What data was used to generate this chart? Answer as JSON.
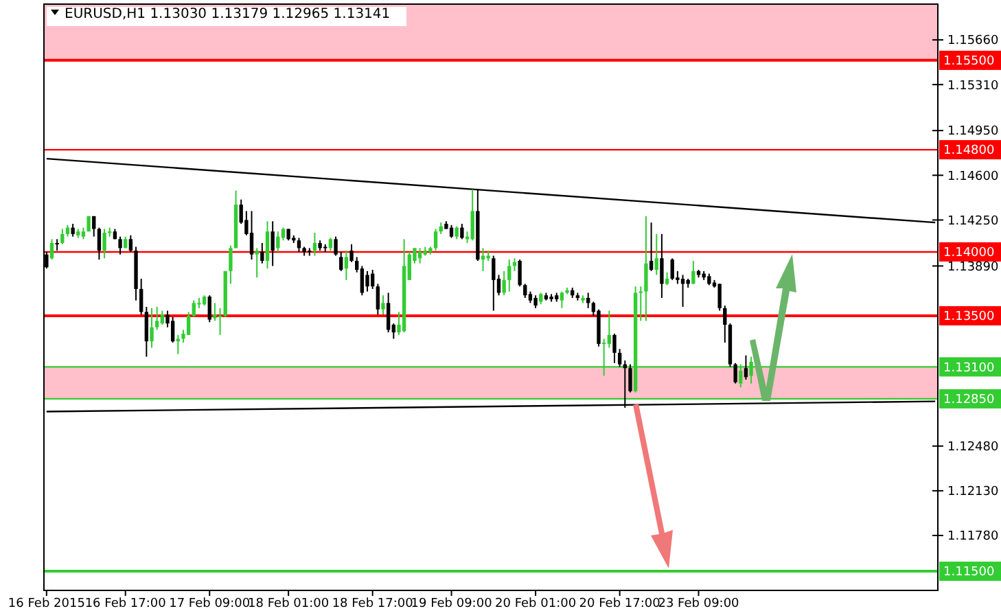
{
  "chart_data": {
    "type": "candlestick",
    "title": "EURUSD,H1  1.13030 1.13179 1.12965 1.13141",
    "categories": [
      "16 Feb 2015",
      null,
      null,
      null,
      null,
      null,
      null,
      null,
      null,
      null,
      null,
      null,
      null,
      null,
      null,
      "16 Feb 17:00",
      null,
      null,
      null,
      null,
      null,
      null,
      null,
      null,
      null,
      null,
      null,
      null,
      null,
      null,
      null,
      "17 Feb 09:00",
      null,
      null,
      null,
      null,
      null,
      null,
      null,
      null,
      null,
      null,
      null,
      null,
      null,
      null,
      "18 Feb 01:00",
      null,
      null,
      null,
      null,
      null,
      null,
      null,
      null,
      null,
      null,
      null,
      null,
      null,
      null,
      null,
      "18 Feb 17:00",
      null,
      null,
      null,
      null,
      null,
      null,
      null,
      null,
      null,
      null,
      null,
      null,
      null,
      null,
      "19 Feb 09:00",
      null,
      null,
      null,
      null,
      null,
      null,
      null,
      null,
      null,
      null,
      null,
      null,
      null,
      null,
      null,
      "20 Feb 01:00",
      null,
      null,
      null,
      null,
      null,
      null,
      null,
      null,
      null,
      null,
      null,
      null,
      null,
      null,
      null,
      "20 Feb 17:00",
      null,
      null,
      null,
      null,
      null,
      null,
      null,
      null,
      null,
      null,
      null,
      null,
      null,
      null,
      "23 Feb 09:00",
      null,
      null,
      null,
      null,
      null,
      null,
      null,
      null,
      null,
      null,
      null,
      null,
      null,
      null,
      null,
      null,
      null,
      null,
      null,
      null,
      null,
      null,
      null,
      null,
      null,
      null,
      null,
      null,
      null,
      null,
      null,
      null,
      null,
      null,
      null,
      null,
      null,
      null,
      null,
      null,
      null,
      null,
      null,
      null,
      null
    ],
    "ohlc": [
      [
        1.1398,
        1.14,
        1.1387,
        1.1388
      ],
      [
        1.1395,
        1.141,
        1.1394,
        1.1407
      ],
      [
        1.1407,
        1.141,
        1.1401,
        1.1406
      ],
      [
        1.1407,
        1.1418,
        1.1406,
        1.1414
      ],
      [
        1.1414,
        1.1421,
        1.1412,
        1.1419
      ],
      [
        1.1419,
        1.1422,
        1.1412,
        1.1414
      ],
      [
        1.1413,
        1.1418,
        1.1411,
        1.1416
      ],
      [
        1.1412,
        1.1419,
        1.141,
        1.1416
      ],
      [
        1.1416,
        1.1428,
        1.1416,
        1.1428
      ],
      [
        1.1428,
        1.1428,
        1.1412,
        1.1418
      ],
      [
        1.1418,
        1.1419,
        1.1394,
        1.1401
      ],
      [
        1.1401,
        1.1418,
        1.1395,
        1.1415
      ],
      [
        1.1415,
        1.1419,
        1.1412,
        1.1416
      ],
      [
        1.1416,
        1.1418,
        1.141,
        1.141
      ],
      [
        1.141,
        1.1412,
        1.1398,
        1.1403
      ],
      [
        1.1403,
        1.1412,
        1.1403,
        1.141
      ],
      [
        1.141,
        1.1413,
        1.14,
        1.1401
      ],
      [
        1.1401,
        1.1404,
        1.1362,
        1.1371
      ],
      [
        1.1371,
        1.1379,
        1.1351,
        1.1353
      ],
      [
        1.1353,
        1.1357,
        1.1318,
        1.133
      ],
      [
        1.133,
        1.1356,
        1.1325,
        1.1341
      ],
      [
        1.1341,
        1.1357,
        1.1339,
        1.1346
      ],
      [
        1.1344,
        1.1354,
        1.1343,
        1.1351
      ],
      [
        1.1351,
        1.1354,
        1.1341,
        1.1344
      ],
      [
        1.1346,
        1.1349,
        1.1329,
        1.133
      ],
      [
        1.133,
        1.1335,
        1.132,
        1.1332
      ],
      [
        1.1332,
        1.1339,
        1.1329,
        1.1336
      ],
      [
        1.1335,
        1.1353,
        1.1335,
        1.135
      ],
      [
        1.135,
        1.1362,
        1.1349,
        1.136
      ],
      [
        1.1359,
        1.1364,
        1.1356,
        1.136
      ],
      [
        1.1359,
        1.1366,
        1.1358,
        1.1365
      ],
      [
        1.1365,
        1.1366,
        1.1345,
        1.1347
      ],
      [
        1.1348,
        1.136,
        1.1346,
        1.1351
      ],
      [
        1.135,
        1.1356,
        1.1335,
        1.135
      ],
      [
        1.135,
        1.1385,
        1.1349,
        1.1385
      ],
      [
        1.1385,
        1.1405,
        1.1375,
        1.1403
      ],
      [
        1.1403,
        1.1448,
        1.1403,
        1.1437
      ],
      [
        1.1437,
        1.1441,
        1.1422,
        1.1423
      ],
      [
        1.1425,
        1.1432,
        1.1413,
        1.1414
      ],
      [
        1.1415,
        1.1432,
        1.1394,
        1.1398
      ],
      [
        1.1398,
        1.1403,
        1.138,
        1.1401
      ],
      [
        1.14,
        1.1407,
        1.1391,
        1.1393
      ],
      [
        1.1393,
        1.1424,
        1.1387,
        1.1416
      ],
      [
        1.1416,
        1.1424,
        1.1389,
        1.1401
      ],
      [
        1.1403,
        1.1416,
        1.14,
        1.1412
      ],
      [
        1.1411,
        1.1419,
        1.1409,
        1.1418
      ],
      [
        1.1418,
        1.1418,
        1.1409,
        1.141
      ],
      [
        1.1411,
        1.1413,
        1.1407,
        1.1409
      ],
      [
        1.1409,
        1.1411,
        1.14,
        1.1403
      ],
      [
        1.1403,
        1.1404,
        1.1397,
        1.14
      ],
      [
        1.1401,
        1.1403,
        1.1397,
        1.14
      ],
      [
        1.1401,
        1.1415,
        1.1397,
        1.1407
      ],
      [
        1.1407,
        1.1409,
        1.1401,
        1.1403
      ],
      [
        1.1404,
        1.1406,
        1.14,
        1.1403
      ],
      [
        1.1403,
        1.1411,
        1.1401,
        1.141
      ],
      [
        1.141,
        1.1412,
        1.1397,
        1.1398
      ],
      [
        1.1396,
        1.14,
        1.1385,
        1.1386
      ],
      [
        1.1387,
        1.1401,
        1.1378,
        1.1396
      ],
      [
        1.1401,
        1.1406,
        1.1392,
        1.1393
      ],
      [
        1.1393,
        1.1396,
        1.1384,
        1.1386
      ],
      [
        1.1387,
        1.1389,
        1.1366,
        1.1368
      ],
      [
        1.1382,
        1.1385,
        1.1369,
        1.1373
      ],
      [
        1.1383,
        1.1386,
        1.1371,
        1.1373
      ],
      [
        1.1373,
        1.1375,
        1.1351,
        1.1355
      ],
      [
        1.1355,
        1.1366,
        1.1351,
        1.136
      ],
      [
        1.136,
        1.1368,
        1.1337,
        1.1339
      ],
      [
        1.1343,
        1.1344,
        1.1332,
        1.1337
      ],
      [
        1.1337,
        1.1353,
        1.1335,
        1.1343
      ],
      [
        1.1338,
        1.141,
        1.1337,
        1.1389
      ],
      [
        1.1378,
        1.14,
        1.1378,
        1.1398
      ],
      [
        1.1393,
        1.1403,
        1.1391,
        1.1403
      ],
      [
        1.1395,
        1.1403,
        1.1391,
        1.14
      ],
      [
        1.1398,
        1.1404,
        1.1397,
        1.1401
      ],
      [
        1.14,
        1.1404,
        1.1398,
        1.1403
      ],
      [
        1.1403,
        1.1418,
        1.1401,
        1.1416
      ],
      [
        1.1416,
        1.1423,
        1.1414,
        1.142
      ],
      [
        1.1422,
        1.1424,
        1.1418,
        1.1418
      ],
      [
        1.1419,
        1.1421,
        1.1411,
        1.1412
      ],
      [
        1.1412,
        1.142,
        1.141,
        1.1419
      ],
      [
        1.1419,
        1.1422,
        1.141,
        1.1411
      ],
      [
        1.141,
        1.1416,
        1.1407,
        1.1412
      ],
      [
        1.141,
        1.1449,
        1.1409,
        1.1432
      ],
      [
        1.1432,
        1.1449,
        1.1393,
        1.1394
      ],
      [
        1.1394,
        1.1403,
        1.1385,
        1.1397
      ],
      [
        1.1395,
        1.1401,
        1.1393,
        1.1397
      ],
      [
        1.1395,
        1.1397,
        1.1354,
        1.1378
      ],
      [
        1.1379,
        1.1382,
        1.1366,
        1.1368
      ],
      [
        1.1368,
        1.1385,
        1.1366,
        1.1378
      ],
      [
        1.1378,
        1.1394,
        1.1369,
        1.1389
      ],
      [
        1.1389,
        1.1395,
        1.1385,
        1.1392
      ],
      [
        1.1393,
        1.1394,
        1.1373,
        1.1374
      ],
      [
        1.1374,
        1.1375,
        1.1364,
        1.1366
      ],
      [
        1.1367,
        1.1369,
        1.136,
        1.1362
      ],
      [
        1.1364,
        1.1366,
        1.1356,
        1.1358
      ],
      [
        1.1361,
        1.1368,
        1.1359,
        1.1367
      ],
      [
        1.1366,
        1.1368,
        1.1362,
        1.1363
      ],
      [
        1.1365,
        1.1367,
        1.1361,
        1.1363
      ],
      [
        1.1366,
        1.1368,
        1.1361,
        1.1363
      ],
      [
        1.1362,
        1.1369,
        1.1356,
        1.1368
      ],
      [
        1.1368,
        1.1372,
        1.1367,
        1.137
      ],
      [
        1.137,
        1.1372,
        1.1364,
        1.1366
      ],
      [
        1.1366,
        1.1368,
        1.1362,
        1.1364
      ],
      [
        1.1362,
        1.1366,
        1.136,
        1.1364
      ],
      [
        1.1364,
        1.1368,
        1.1356,
        1.136
      ],
      [
        1.136,
        1.1361,
        1.135,
        1.1353
      ],
      [
        1.1354,
        1.1355,
        1.1326,
        1.1328
      ],
      [
        1.1328,
        1.1332,
        1.1303,
        1.1329
      ],
      [
        1.1328,
        1.1354,
        1.1325,
        1.1335
      ],
      [
        1.1335,
        1.1336,
        1.1313,
        1.1321
      ],
      [
        1.1321,
        1.1324,
        1.131,
        1.1312
      ],
      [
        1.1312,
        1.1315,
        1.1278,
        1.1309
      ],
      [
        1.1309,
        1.1312,
        1.129,
        1.1291
      ],
      [
        1.1291,
        1.1373,
        1.129,
        1.1368
      ],
      [
        1.1368,
        1.1373,
        1.1346,
        1.1369
      ],
      [
        1.1369,
        1.1428,
        1.1346,
        1.1391
      ],
      [
        1.1393,
        1.1423,
        1.1385,
        1.1386
      ],
      [
        1.1386,
        1.1414,
        1.1382,
        1.1395
      ],
      [
        1.1395,
        1.1414,
        1.1364,
        1.1375
      ],
      [
        1.1375,
        1.1384,
        1.1374,
        1.1379
      ],
      [
        1.1394,
        1.1395,
        1.1378,
        1.1379
      ],
      [
        1.138,
        1.1385,
        1.1375,
        1.1378
      ],
      [
        1.1379,
        1.1382,
        1.1357,
        1.1375
      ],
      [
        1.1378,
        1.1379,
        1.1372,
        1.1375
      ],
      [
        1.1375,
        1.1393,
        1.1375,
        1.1385
      ],
      [
        1.1385,
        1.1386,
        1.138,
        1.1382
      ],
      [
        1.1383,
        1.1385,
        1.1378,
        1.138
      ],
      [
        1.1381,
        1.1383,
        1.1374,
        1.1375
      ],
      [
        1.1376,
        1.1378,
        1.1372,
        1.1373
      ],
      [
        1.1375,
        1.1375,
        1.1354,
        1.1356
      ],
      [
        1.1356,
        1.1358,
        1.1329,
        1.1343
      ],
      [
        1.1343,
        1.1344,
        1.131,
        1.1312
      ],
      [
        1.1312,
        1.1313,
        1.1297,
        1.1298
      ],
      [
        1.1297,
        1.1312,
        1.1294,
        1.1307
      ],
      [
        1.1309,
        1.1319,
        1.13,
        1.1302
      ],
      [
        1.1303,
        1.1318,
        1.1297,
        1.1314
      ],
      null,
      null,
      null,
      null,
      null,
      null,
      null,
      null,
      null,
      null,
      null,
      null,
      null,
      null,
      null,
      null,
      null,
      null,
      null,
      null,
      null,
      null,
      null,
      null,
      null,
      null,
      null,
      null,
      null,
      null,
      null,
      null,
      null,
      null,
      null
    ],
    "series": [
      {
        "type": "line",
        "color": "#000000",
        "values": [
          1.1473,
          null,
          null,
          null,
          null,
          null,
          null,
          null,
          null,
          null,
          null,
          null,
          null,
          null,
          null,
          null,
          null,
          null,
          null,
          null,
          null,
          null,
          null,
          null,
          null,
          null,
          null,
          null,
          null,
          null,
          null,
          null,
          null,
          null,
          null,
          null,
          null,
          null,
          null,
          null,
          null,
          null,
          null,
          null,
          null,
          null,
          null,
          null,
          null,
          null,
          null,
          null,
          null,
          null,
          null,
          null,
          null,
          null,
          null,
          null,
          null,
          null,
          null,
          null,
          null,
          null,
          null,
          null,
          null,
          null,
          null,
          null,
          null,
          null,
          null,
          null,
          null,
          null,
          null,
          null,
          null,
          null,
          null,
          null,
          null,
          null,
          null,
          null,
          null,
          null,
          null,
          null,
          null,
          null,
          null,
          null,
          null,
          null,
          null,
          null,
          null,
          null,
          null,
          null,
          null,
          null,
          null,
          null,
          null,
          null,
          null,
          null,
          null,
          null,
          null,
          null,
          null,
          null,
          null,
          null,
          null,
          null,
          null,
          null,
          null,
          null,
          null,
          null,
          null,
          null,
          null,
          null,
          null,
          null,
          null,
          null,
          null,
          null,
          null,
          null,
          null,
          null,
          null,
          null,
          null,
          null,
          null,
          null,
          null,
          null,
          null,
          null,
          null,
          null,
          null,
          null,
          null,
          null,
          null,
          null,
          null,
          null,
          null,
          null,
          null,
          null,
          null,
          null,
          null,
          1.1423
        ]
      },
      {
        "type": "line",
        "color": "#000000",
        "values": [
          1.1275,
          null,
          null,
          null,
          null,
          null,
          null,
          null,
          null,
          null,
          null,
          null,
          null,
          null,
          null,
          null,
          null,
          null,
          null,
          null,
          null,
          null,
          null,
          null,
          null,
          null,
          null,
          null,
          null,
          null,
          null,
          null,
          null,
          null,
          null,
          null,
          null,
          null,
          null,
          null,
          null,
          null,
          null,
          null,
          null,
          null,
          null,
          null,
          null,
          null,
          null,
          null,
          null,
          null,
          null,
          null,
          null,
          null,
          null,
          null,
          null,
          null,
          null,
          null,
          null,
          null,
          null,
          null,
          null,
          null,
          null,
          null,
          null,
          null,
          null,
          null,
          null,
          null,
          null,
          null,
          null,
          null,
          null,
          null,
          null,
          null,
          null,
          null,
          null,
          null,
          null,
          null,
          null,
          null,
          null,
          null,
          null,
          null,
          null,
          null,
          null,
          null,
          null,
          null,
          null,
          null,
          null,
          null,
          null,
          null,
          null,
          null,
          null,
          null,
          null,
          null,
          null,
          null,
          null,
          null,
          null,
          null,
          null,
          null,
          null,
          null,
          null,
          null,
          null,
          null,
          null,
          null,
          null,
          null,
          null,
          null,
          null,
          null,
          null,
          null,
          null,
          null,
          null,
          null,
          null,
          null,
          null,
          null,
          null,
          null,
          null,
          null,
          null,
          null,
          null,
          null,
          null,
          null,
          null,
          null,
          null,
          null,
          null,
          null,
          null,
          null,
          null,
          null,
          null,
          1.1283
        ]
      }
    ],
    "ylim": [
      1.1135,
      1.1594
    ],
    "yticks": [
      {
        "value": 1.1566,
        "label": "1.15660"
      },
      {
        "value": 1.1531,
        "label": "1.15310"
      },
      {
        "value": 1.1495,
        "label": "1.14950"
      },
      {
        "value": 1.146,
        "label": "1.14600"
      },
      {
        "value": 1.1425,
        "label": "1.14250"
      },
      {
        "value": 1.1389,
        "label": "1.13890"
      },
      {
        "value": 1.1248,
        "label": "1.12480"
      },
      {
        "value": 1.1213,
        "label": "1.12130"
      },
      {
        "value": 1.1178,
        "label": "1.11780"
      }
    ],
    "ref_lines": [
      {
        "axis": "y",
        "value": 1.155,
        "label": "1.15500",
        "color": "#ff0000"
      },
      {
        "axis": "y",
        "value": 1.148,
        "label": "1.14800",
        "color": "#ff0000"
      },
      {
        "axis": "y",
        "value": 1.14,
        "label": "1.14000",
        "color": "#ff0000"
      },
      {
        "axis": "y",
        "value": 1.135,
        "label": "1.13500",
        "color": "#ff0000"
      },
      {
        "axis": "y",
        "value": 1.131,
        "label": "1.13100",
        "color": "#33cc33"
      },
      {
        "axis": "y",
        "value": 1.1285,
        "label": "1.12850",
        "color": "#33cc33"
      },
      {
        "axis": "y",
        "value": 1.115,
        "label": "1.11500",
        "color": "#33cc33"
      }
    ],
    "bands": [
      {
        "axis": "y",
        "from": 1.155,
        "to": 1.1594,
        "color": "#ffc0cb"
      },
      {
        "axis": "y",
        "from": 1.1285,
        "to": 1.131,
        "color": "#ffc0cb"
      }
    ],
    "grid": false
  }
}
